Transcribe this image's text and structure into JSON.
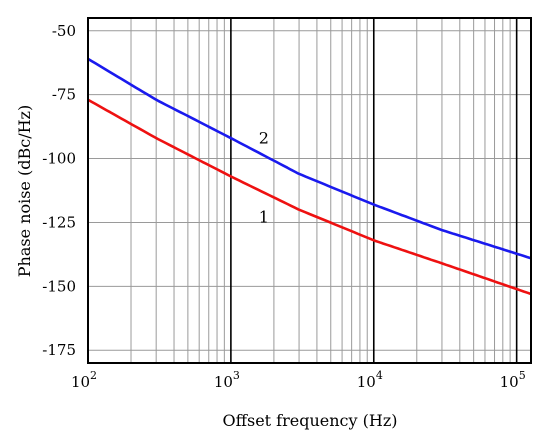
{
  "chart_data": {
    "type": "line",
    "xlabel": "Offset frequency (Hz)",
    "ylabel": "Phase noise (dBc/Hz)",
    "x_scale": "log",
    "xlim": [
      100,
      126000
    ],
    "ylim": [
      -180,
      -45
    ],
    "x_ticks": [
      {
        "value": 100,
        "base": "10",
        "exp": "2"
      },
      {
        "value": 1000,
        "base": "10",
        "exp": "3"
      },
      {
        "value": 10000,
        "base": "10",
        "exp": "4"
      },
      {
        "value": 100000,
        "base": "10",
        "exp": "5"
      }
    ],
    "y_ticks": [
      {
        "value": -50,
        "label": "-50"
      },
      {
        "value": -75,
        "label": "-75"
      },
      {
        "value": -100,
        "label": "-100"
      },
      {
        "value": -125,
        "label": "-125"
      },
      {
        "value": -150,
        "label": "-150"
      },
      {
        "value": -175,
        "label": "-175"
      }
    ],
    "grid": true,
    "series": [
      {
        "name": "1",
        "color": "#ee1111",
        "x": [
          100,
          300,
          1000,
          3000,
          10000,
          30000,
          126000
        ],
        "y": [
          -77,
          -92,
          -107,
          -120,
          -132,
          -141,
          -153
        ]
      },
      {
        "name": "2",
        "color": "#1a1aee",
        "x": [
          100,
          300,
          1000,
          3000,
          10000,
          30000,
          126000
        ],
        "y": [
          -61,
          -77,
          -92,
          -106,
          -118,
          -128,
          -139
        ]
      }
    ]
  }
}
